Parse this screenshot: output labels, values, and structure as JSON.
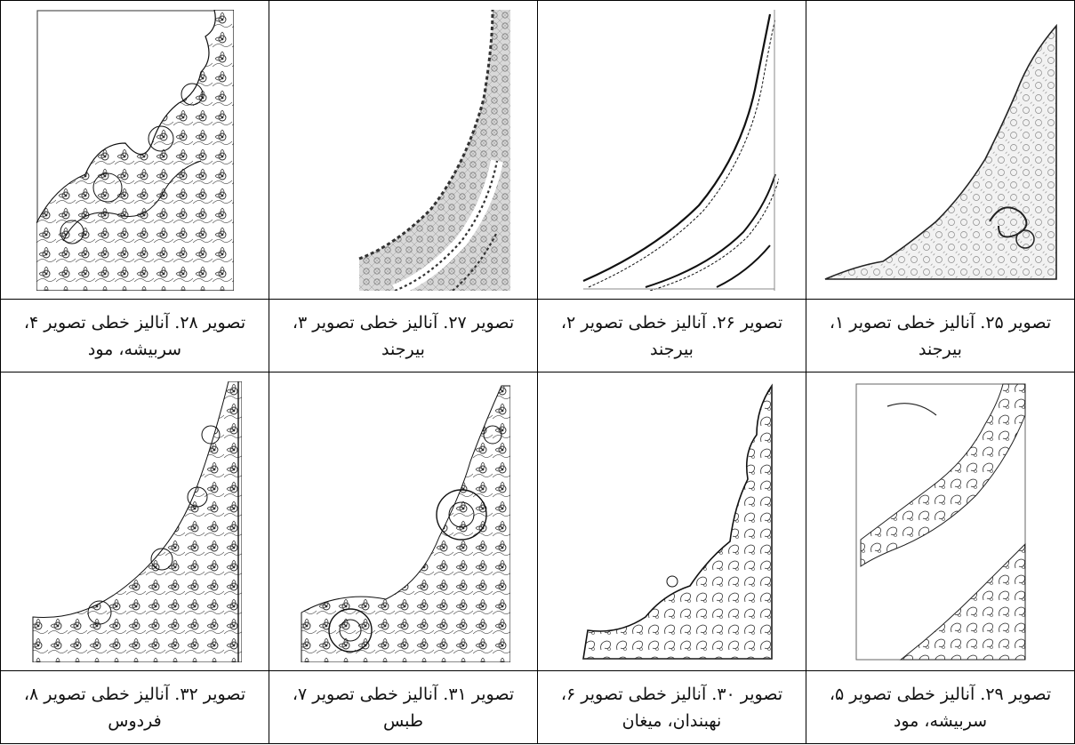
{
  "captions": {
    "r1": [
      {
        "line1": "تصویر ۲۸. آنالیز خطی تصویر ۴،",
        "line2": "سربیشه، مود"
      },
      {
        "line1": "تصویر ۲۷. آنالیز خطی تصویر ۳،",
        "line2": "بیرجند"
      },
      {
        "line1": "تصویر ۲۶. آنالیز خطی تصویر ۲،",
        "line2": "بیرجند"
      },
      {
        "line1": "تصویر ۲۵. آنالیز خطی تصویر ۱،",
        "line2": "بیرجند"
      }
    ],
    "r2": [
      {
        "line1": "تصویر ۳۲. آنالیز خطی تصویر ۸،",
        "line2": "فردوس"
      },
      {
        "line1": "تصویر ۳۱. آنالیز خطی تصویر ۷،",
        "line2": "طبس"
      },
      {
        "line1": "تصویر ۳۰. آنالیز خطی تصویر ۶،",
        "line2": "نهبندان، میغان"
      },
      {
        "line1": "تصویر ۲۹. آنالیز خطی تصویر ۵،",
        "line2": "سربیشه، مود"
      }
    ]
  }
}
